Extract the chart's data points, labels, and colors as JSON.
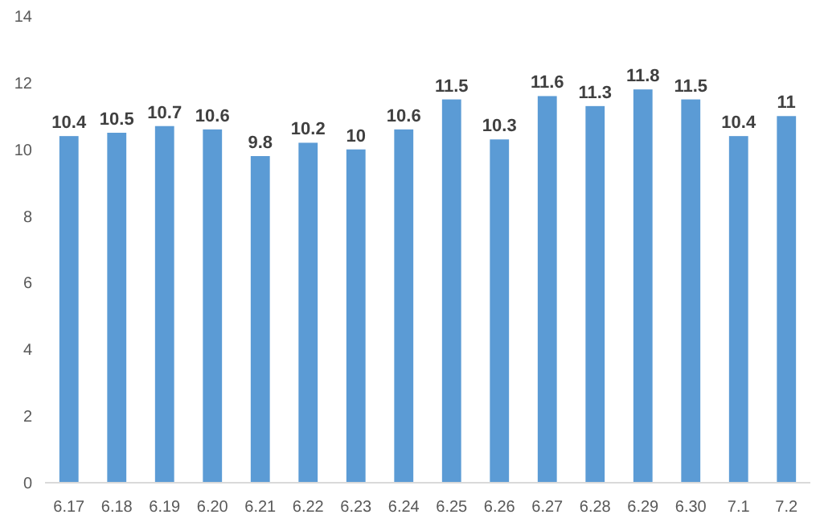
{
  "chart_data": {
    "type": "bar",
    "categories": [
      "6.17",
      "6.18",
      "6.19",
      "6.20",
      "6.21",
      "6.22",
      "6.23",
      "6.24",
      "6.25",
      "6.26",
      "6.27",
      "6.28",
      "6.29",
      "6.30",
      "7.1",
      "7.2"
    ],
    "values": [
      10.4,
      10.5,
      10.7,
      10.6,
      9.8,
      10.2,
      10,
      10.6,
      11.5,
      10.3,
      11.6,
      11.3,
      11.8,
      11.5,
      10.4,
      11
    ],
    "color": "#5b9bd5",
    "ylim": [
      0,
      14
    ],
    "yticks": [
      0,
      2,
      4,
      6,
      8,
      10,
      12,
      14
    ],
    "grid": false,
    "data_labels": true
  }
}
